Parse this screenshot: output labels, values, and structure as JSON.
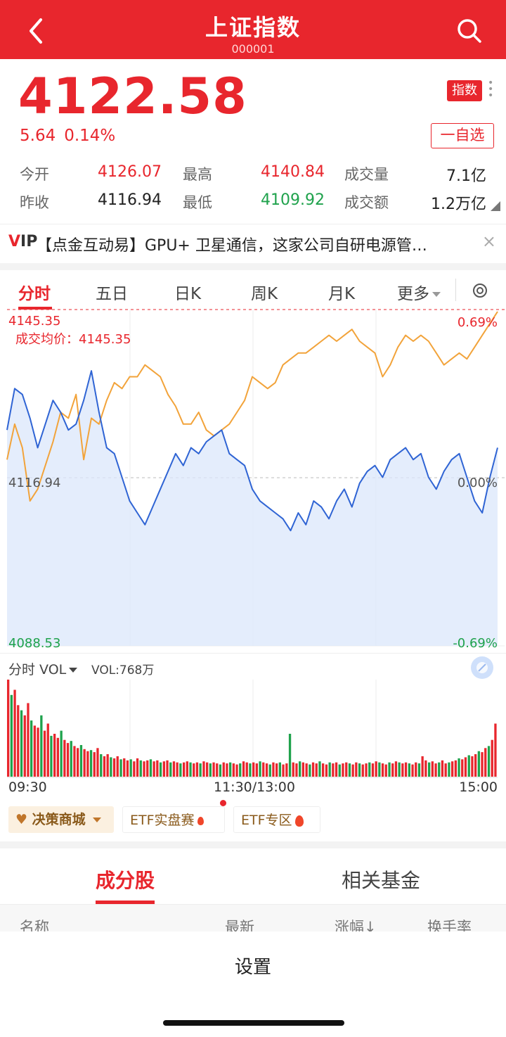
{
  "header": {
    "title": "上证指数",
    "code": "000001",
    "back_icon": "chevron-left-icon",
    "search_icon": "search-icon"
  },
  "quote": {
    "price": "4122.58",
    "change": "5.64",
    "change_pct": "0.14%",
    "badge": "指数",
    "watchlist_label": "一自选",
    "stats": {
      "open_label": "今开",
      "open": "4126.07",
      "high_label": "最高",
      "high": "4140.84",
      "volume_label": "成交量",
      "volume": "7.1亿",
      "prev_close_label": "昨收",
      "prev_close": "4116.94",
      "low_label": "最低",
      "low": "4109.92",
      "amount_label": "成交额",
      "amount": "1.2万亿"
    }
  },
  "news": {
    "vip_prefix": "V",
    "vip_suffix": "IP",
    "text": "【点金互动易】GPU+ 卫星通信，这家公司自研电源管…",
    "close": "×"
  },
  "chart_tabs": {
    "tabs": [
      "分时",
      "五日",
      "日K",
      "周K",
      "月K",
      "更多"
    ],
    "active_index": 0,
    "settings_icon": "target-icon"
  },
  "colors": {
    "brand_red": "#e8262d",
    "down_green": "#1fa24c",
    "price_line": "#2f64d4",
    "avg_line": "#f2a33a"
  },
  "chart_data": {
    "type": "line",
    "title": "",
    "upper_price_label": "4145.35",
    "avg_price_label": "成交均价：4145.35",
    "upper_pct_label": "0.69%",
    "mid_price_label": "4116.94",
    "mid_pct_label": "0.00%",
    "lower_price_label": "4088.53",
    "lower_pct_label": "-0.69%",
    "ylim": [
      4088.53,
      4145.35
    ],
    "reference": 4116.94,
    "x_labels": [
      "09:30",
      "11:30/13:00",
      "15:00"
    ],
    "series": [
      {
        "name": "",
        "values": [
          4125,
          4132,
          4131,
          4127,
          4122,
          4126,
          4130,
          4128,
          4125,
          4126,
          4130,
          4135,
          4128,
          4122,
          4121,
          4117,
          4113,
          4111,
          4109,
          4112,
          4115,
          4118,
          4121,
          4119,
          4122,
          4121,
          4123,
          4124,
          4125,
          4121,
          4120,
          4119,
          4115,
          4113,
          4112,
          4111,
          4110,
          4108,
          4111,
          4109,
          4113,
          4112,
          4110,
          4113,
          4115,
          4112,
          4116,
          4118,
          4119,
          4117,
          4120,
          4121,
          4122,
          4120,
          4121,
          4117,
          4115,
          4118,
          4120,
          4121,
          4117,
          4113,
          4111,
          4117,
          4122
        ],
        "color": "#2f64d4"
      },
      {
        "name": "",
        "values": [
          4120,
          4126,
          4122,
          4113,
          4115,
          4119,
          4123,
          4128,
          4127,
          4131,
          4120,
          4127,
          4126,
          4130,
          4133,
          4132,
          4134,
          4134,
          4136,
          4135,
          4134,
          4131,
          4129,
          4126,
          4126,
          4128,
          4125,
          4124,
          4125,
          4126,
          4128,
          4130,
          4134,
          4133,
          4132,
          4133,
          4136,
          4137,
          4138,
          4138,
          4139,
          4140,
          4141,
          4140,
          4141,
          4142,
          4140,
          4139,
          4138,
          4134,
          4136,
          4139,
          4141,
          4140,
          4141,
          4140,
          4138,
          4136,
          4137,
          4138,
          4137,
          4139,
          4141,
          4143,
          4145
        ],
        "color": "#f2a33a"
      }
    ],
    "volume": {
      "selector_label": "分时 VOL",
      "value_label": "VOL:768万",
      "bars": [
        95,
        80,
        85,
        70,
        65,
        60,
        72,
        55,
        50,
        48,
        60,
        45,
        52,
        40,
        42,
        38,
        45,
        36,
        33,
        35,
        30,
        28,
        31,
        27,
        25,
        26,
        24,
        28,
        22,
        20,
        22,
        19,
        18,
        20,
        17,
        18,
        16,
        17,
        15,
        18,
        16,
        15,
        16,
        17,
        15,
        16,
        14,
        15,
        16,
        14,
        15,
        14,
        13,
        14,
        15,
        14,
        13,
        14,
        13,
        15,
        14,
        13,
        14,
        13,
        12,
        14,
        13,
        14,
        13,
        12,
        13,
        15,
        14,
        13,
        14,
        13,
        15,
        14,
        13,
        12,
        14,
        13,
        14,
        12,
        13,
        42,
        14,
        13,
        15,
        14,
        13,
        12,
        14,
        13,
        15,
        13,
        12,
        14,
        13,
        14,
        12,
        13,
        14,
        13,
        12,
        14,
        13,
        12,
        13,
        14,
        13,
        15,
        14,
        13,
        12,
        14,
        13,
        15,
        14,
        13,
        14,
        13,
        12,
        14,
        13,
        20,
        16,
        14,
        15,
        13,
        14,
        16,
        13,
        14,
        15,
        16,
        18,
        17,
        19,
        21,
        20,
        22,
        25,
        24,
        28,
        30,
        36,
        52
      ]
    }
  },
  "chips": {
    "decision": "决策商城",
    "etf_contest": "ETF实盘赛",
    "etf_zone": "ETF专区"
  },
  "component_tabs": {
    "tabs": [
      "成分股",
      "相关基金"
    ],
    "active_index": 0
  },
  "list_header": {
    "name": "名称",
    "latest": "最新",
    "change": "涨幅↓",
    "turnover": "换手率"
  },
  "bottom": {
    "settings": "设置"
  }
}
